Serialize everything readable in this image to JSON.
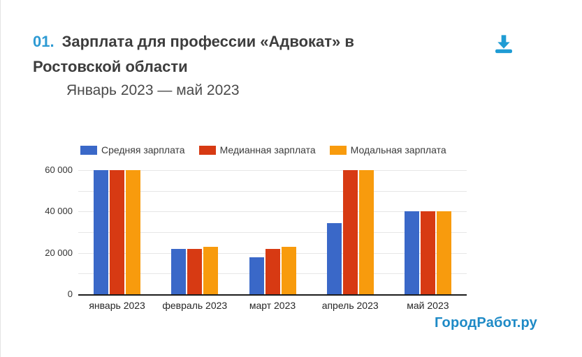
{
  "header": {
    "index": "01.",
    "title": "Зарплата для профессии «Адвокат» в Ростовской области",
    "subtitle": "Январь 2023 — май 2023"
  },
  "footer": {
    "logo_text": "ГородРабот.ру"
  },
  "icons": {
    "download": "download-icon"
  },
  "colors": {
    "accent": "#2D9AD3",
    "icon": "#1F9CD4",
    "logo": "#1E8AC6",
    "title_text": "#3D3D3D",
    "subtitle_text": "#4A4A4A",
    "axis_line": "#1C1C1C",
    "gridline": "#E6E6E6",
    "divider": "#E3E3E3"
  },
  "chart_data": {
    "type": "bar",
    "title": "Зарплата для профессии «Адвокат» в Ростовской области",
    "xlabel": "",
    "ylabel": "",
    "categories": [
      "январь 2023",
      "февраль 2023",
      "март 2023",
      "апрель 2023",
      "май 2023"
    ],
    "series": [
      {
        "name": "Средняя зарплата",
        "color": "#3A68C8",
        "values": [
          60000,
          22000,
          18000,
          34500,
          40000
        ]
      },
      {
        "name": "Медианная зарплата",
        "color": "#D73A13",
        "values": [
          60000,
          22000,
          22000,
          60000,
          40000
        ]
      },
      {
        "name": "Модальная зарплата",
        "color": "#F89B0D",
        "values": [
          60000,
          23000,
          23000,
          60000,
          40000
        ]
      }
    ],
    "ylim": [
      0,
      60000
    ],
    "gridline_step": 10000,
    "grid": true,
    "legend_position": "top",
    "yticks": [
      {
        "value": 0,
        "label": "0"
      },
      {
        "value": 20000,
        "label": "20 000"
      },
      {
        "value": 40000,
        "label": "40 000"
      },
      {
        "value": 60000,
        "label": "60 000"
      }
    ]
  }
}
